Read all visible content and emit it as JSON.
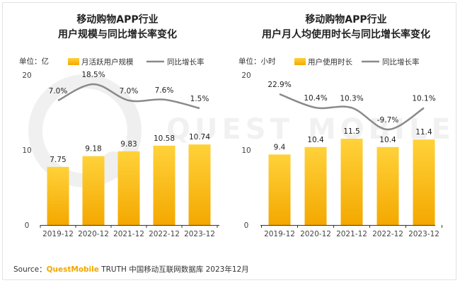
{
  "watermark": "QUEST MOBILE",
  "charts": [
    {
      "title_line1": "移动购物APP行业",
      "title_line2": "用户规模与同比增长率变化",
      "unit": "单位：亿",
      "legend_bar": "月活跃用户规模",
      "legend_line": "同比增长率"
    },
    {
      "title_line1": "移动购物APP行业",
      "title_line2": "用户月人均使用时长与同比增长率变化",
      "unit": "单位：小时",
      "legend_bar": "用户使用时长",
      "legend_line": "同比增长率"
    }
  ],
  "source": {
    "prefix": "Source：",
    "brand": "QuestMobile",
    "rest": " TRUTH 中国移动互联网数据库 2023年12月"
  },
  "colors": {
    "bar_top": "#ffd23a",
    "bar_bottom": "#f4a800",
    "line": "#8a8a8a",
    "axis": "#333333"
  },
  "chart_data": [
    {
      "type": "bar",
      "categories": [
        "2019-12",
        "2020-12",
        "2021-12",
        "2022-12",
        "2023-12"
      ],
      "series": [
        {
          "name": "月活跃用户规模",
          "type": "bar",
          "values": [
            7.75,
            9.18,
            9.83,
            10.58,
            10.74
          ],
          "labels": [
            "7.75",
            "9.18",
            "9.83",
            "10.58",
            "10.74"
          ]
        },
        {
          "name": "同比增长率",
          "type": "line",
          "values": [
            7.0,
            18.5,
            7.0,
            7.6,
            1.5
          ],
          "labels": [
            "7.0%",
            "18.5%",
            "7.0%",
            "7.6%",
            "1.5%"
          ]
        }
      ],
      "ylim": [
        0,
        20
      ],
      "yticks": [
        "0",
        "10",
        "20"
      ]
    },
    {
      "type": "bar",
      "categories": [
        "2019-12",
        "2020-12",
        "2021-12",
        "2022-12",
        "2023-12"
      ],
      "series": [
        {
          "name": "用户使用时长",
          "type": "bar",
          "values": [
            9.4,
            10.4,
            11.5,
            10.4,
            11.4
          ],
          "labels": [
            "9.4",
            "10.4",
            "11.5",
            "10.4",
            "11.4"
          ]
        },
        {
          "name": "同比增长率",
          "type": "line",
          "values": [
            22.9,
            10.4,
            10.3,
            -9.7,
            10.1
          ],
          "labels": [
            "22.9%",
            "10.4%",
            "10.3%",
            "-9.7%",
            "10.1%"
          ]
        }
      ],
      "ylim": [
        0,
        20
      ],
      "yticks": [
        "0",
        "10",
        "20"
      ]
    }
  ]
}
